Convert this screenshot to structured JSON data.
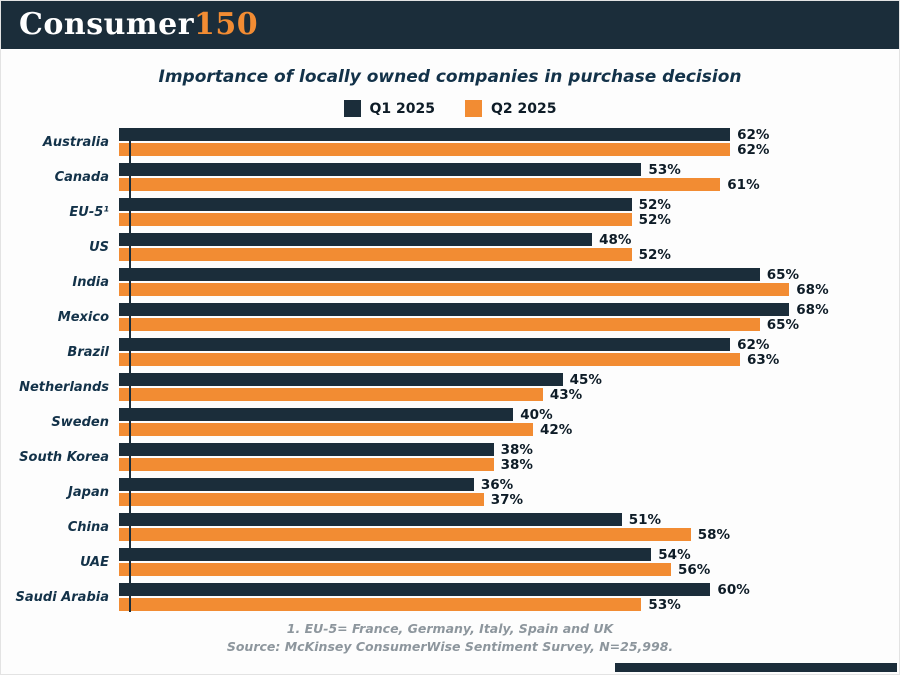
{
  "header": {
    "logo_consumer": "Consumer",
    "logo_150": "150"
  },
  "title": "Importance of locally owned companies in purchase decision",
  "legend": [
    {
      "label": "Q1 2025",
      "color": "#1b2d3a"
    },
    {
      "label": "Q2 2025",
      "color": "#f28c33"
    }
  ],
  "chart_data": {
    "type": "bar",
    "orientation": "horizontal",
    "title": "Importance of locally owned companies in purchase decision",
    "categories": [
      "Australia",
      "Canada",
      "EU-5¹",
      "US",
      "India",
      "Mexico",
      "Brazil",
      "Netherlands",
      "Sweden",
      "South Korea",
      "Japan",
      "China",
      "UAE",
      "Saudi Arabia"
    ],
    "series": [
      {
        "name": "Q1 2025",
        "color": "#1b2d3a",
        "values": [
          62,
          53,
          52,
          48,
          65,
          68,
          62,
          45,
          40,
          38,
          36,
          51,
          54,
          60
        ]
      },
      {
        "name": "Q2 2025",
        "color": "#f28c33",
        "values": [
          62,
          61,
          52,
          52,
          68,
          65,
          63,
          43,
          42,
          38,
          37,
          58,
          56,
          53
        ]
      }
    ],
    "value_suffix": "%",
    "xlim": [
      0,
      70
    ],
    "grid": false,
    "legend_position": "top"
  },
  "footnotes": [
    "1. EU-5= France, Germany, Italy, Spain and UK",
    "Source: McKinsey ConsumerWise Sentiment Survey, N=25,998."
  ],
  "colors": {
    "navy": "#1b2d3a",
    "orange": "#f28c33",
    "footnote_gray": "#8d969d",
    "background": "#fdfdfd"
  }
}
